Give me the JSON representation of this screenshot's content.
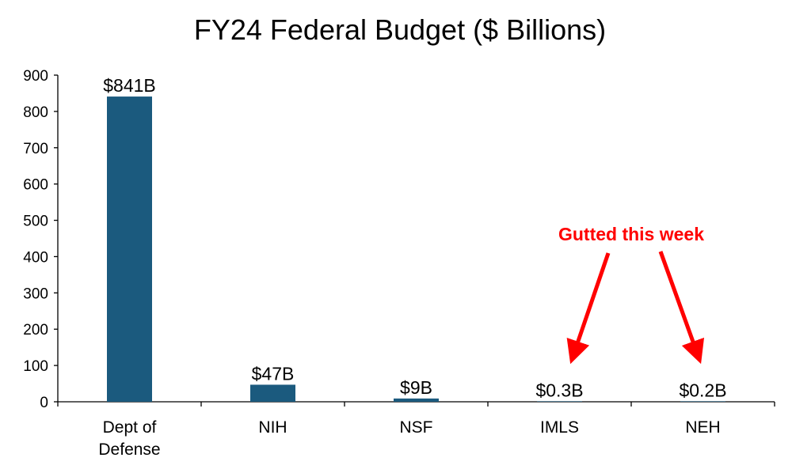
{
  "chart_data": {
    "type": "bar",
    "title": "FY24 Federal Budget ($ Billions)",
    "categories": [
      "Dept of Defense",
      "NIH",
      "NSF",
      "IMLS",
      "NEH"
    ],
    "category_lines": [
      [
        "Dept of",
        "Defense"
      ],
      [
        "NIH"
      ],
      [
        "NSF"
      ],
      [
        "IMLS"
      ],
      [
        "NEH"
      ]
    ],
    "values": [
      841,
      47,
      9,
      0.3,
      0.2
    ],
    "data_labels": [
      "$841B",
      "$47B",
      "$9B",
      "$0.3B",
      "$0.2B"
    ],
    "ylim": [
      0,
      900
    ],
    "yticks": [
      0,
      100,
      200,
      300,
      400,
      500,
      600,
      700,
      800,
      900
    ],
    "grid": false,
    "bar_color": "#1b5a7e",
    "annotation": {
      "text": "Gutted this week",
      "color": "#ff0000",
      "targets": [
        "IMLS",
        "NEH"
      ]
    }
  }
}
